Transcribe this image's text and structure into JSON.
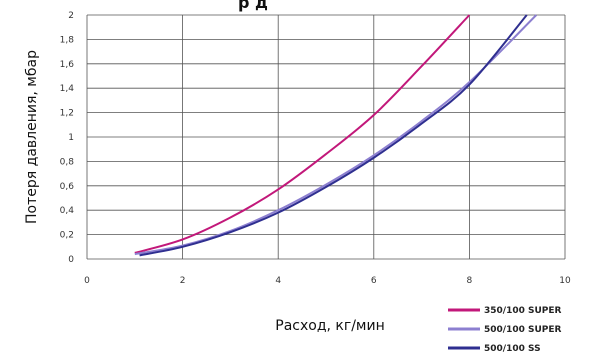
{
  "chart_data": {
    "type": "line",
    "title": "",
    "xlabel": "Расход, кг/мин",
    "ylabel": "Потеря давления, мбар",
    "xlim": [
      0,
      10
    ],
    "ylim": [
      0,
      2
    ],
    "x_ticks": [
      "0",
      "2",
      "4",
      "6",
      "8",
      "10"
    ],
    "y_ticks": [
      "0",
      "0,2",
      "0,4",
      "0,6",
      "0,8",
      "1",
      "1,2",
      "1,4",
      "1,6",
      "1,8",
      "2"
    ],
    "grid": true,
    "legend": "bottom-right",
    "series": [
      {
        "name": "350/100 SUPER",
        "color": "#c2187a",
        "x": [
          1,
          2,
          3,
          4,
          5,
          6,
          7,
          8
        ],
        "y": [
          0.05,
          0.16,
          0.34,
          0.57,
          0.86,
          1.18,
          1.58,
          2.0
        ]
      },
      {
        "name": "500/100 SUPER",
        "color": "#8c7fd0",
        "x": [
          1,
          2,
          3,
          4,
          5,
          6,
          7,
          8,
          9.4
        ],
        "y": [
          0.04,
          0.11,
          0.23,
          0.4,
          0.61,
          0.85,
          1.13,
          1.45,
          2.0
        ]
      },
      {
        "name": "500/100 SS",
        "color": "#2f2f90",
        "x": [
          1.1,
          2,
          3,
          4,
          5,
          6,
          7,
          8,
          9.2
        ],
        "y": [
          0.03,
          0.1,
          0.22,
          0.38,
          0.59,
          0.83,
          1.11,
          1.43,
          2.0
        ]
      }
    ]
  }
}
